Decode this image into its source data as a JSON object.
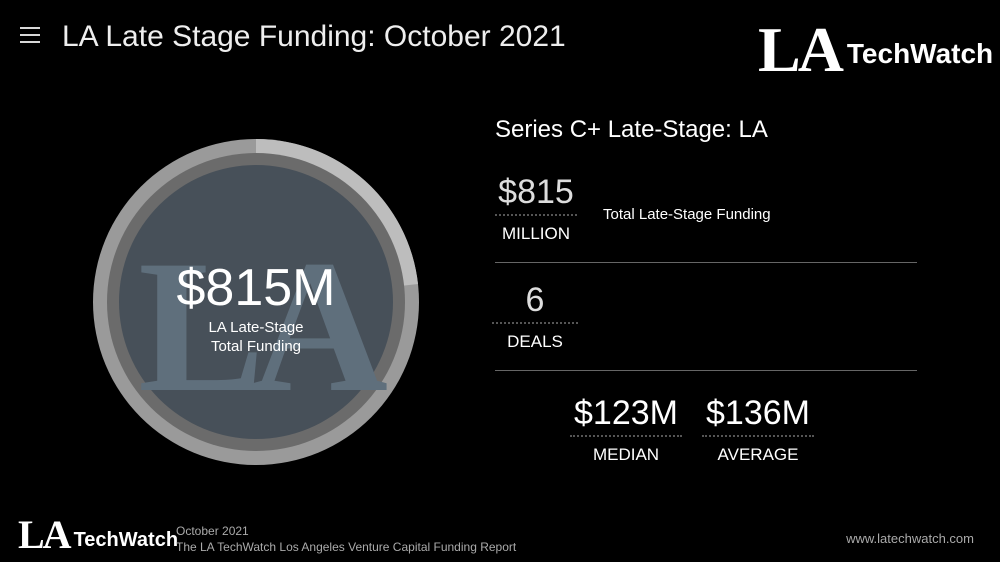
{
  "header": {
    "menu_icon": "hamburger-menu-icon",
    "title": "LA Late Stage Funding: October 2021",
    "logo": {
      "la": "LA",
      "text": "TechWatch"
    }
  },
  "donut": {
    "value": "$815M",
    "label_line1": "LA Late-Stage",
    "label_line2": "Total Funding",
    "watermark": "LA",
    "colors": {
      "outer_ring": "#9a9a9a",
      "outer_highlight": "#bdbdbd",
      "inner_fill": "#475059",
      "watermark": "#5f6f7c"
    }
  },
  "summary": {
    "title": "Series C+ Late-Stage: LA",
    "funding": {
      "value": "$815",
      "unit": "MILLION",
      "description": "Total Late-Stage Funding"
    },
    "deals": {
      "value": "6",
      "unit": "DEALS"
    },
    "median": {
      "value": "$123M",
      "unit": "MEDIAN"
    },
    "average": {
      "value": "$136M",
      "unit": "AVERAGE"
    }
  },
  "footer": {
    "logo": {
      "la": "LA",
      "text": "TechWatch"
    },
    "line1": "October 2021",
    "line2": "The LA TechWatch Los Angeles Venture Capital Funding Report",
    "url": "www.latechwatch.com"
  }
}
